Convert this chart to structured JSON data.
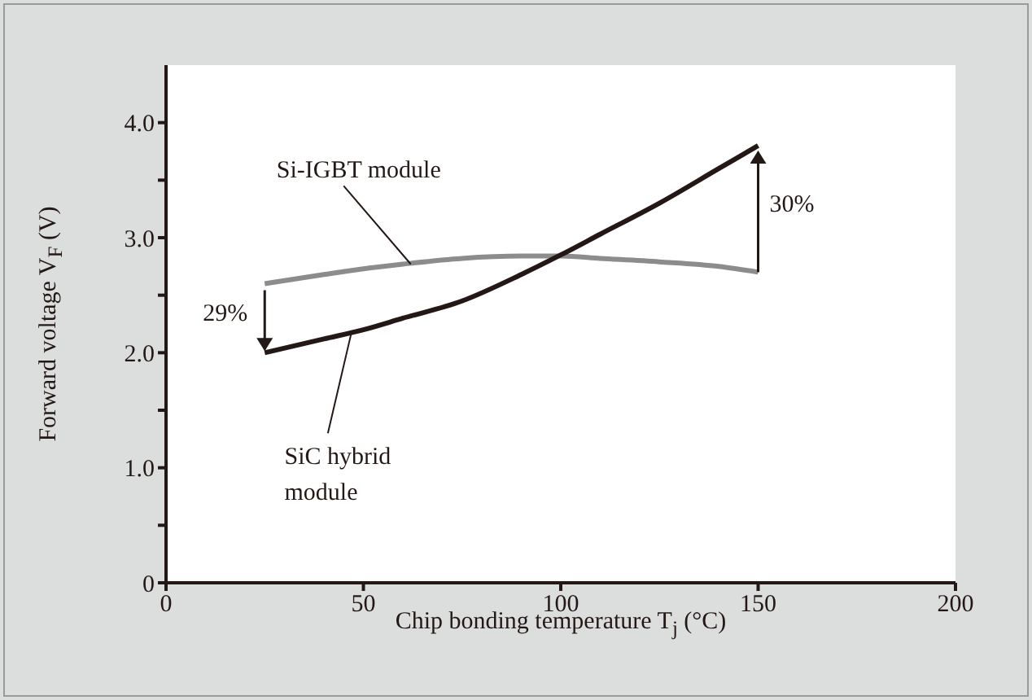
{
  "chart_data": {
    "type": "line",
    "xlabel": "Chip bonding temperature T$_{j}$ (°C)",
    "ylabel": "Forward voltage V$_{F}$ (V)",
    "x": [
      25,
      40,
      50,
      60,
      75,
      90,
      100,
      110,
      125,
      140,
      150
    ],
    "series": [
      {
        "name": "Si-IGBT module",
        "color": "#8c8c8c",
        "values": [
          2.6,
          2.68,
          2.73,
          2.77,
          2.82,
          2.84,
          2.84,
          2.82,
          2.79,
          2.75,
          2.7
        ]
      },
      {
        "name": "SiC hybrid module",
        "color": "#231815",
        "values": [
          2.0,
          2.12,
          2.2,
          2.3,
          2.45,
          2.68,
          2.85,
          3.03,
          3.3,
          3.6,
          3.8
        ]
      }
    ],
    "xlim": [
      0,
      200
    ],
    "xticks": [
      0,
      50,
      100,
      150,
      200
    ],
    "ylim": [
      0,
      4.5
    ],
    "yticks": [
      0,
      {
        "value": 0.5,
        "label": null
      },
      {
        "value": 1,
        "label": "1.0"
      },
      {
        "value": 1.5,
        "label": null
      },
      {
        "value": 2,
        "label": "2.0"
      },
      {
        "value": 2.5,
        "label": null
      },
      {
        "value": 3,
        "label": "3.0"
      },
      {
        "value": 3.5,
        "label": null
      },
      {
        "value": 4,
        "label": "4.0"
      }
    ],
    "annotations": [
      "29%",
      "30%"
    ],
    "grid": false,
    "legend": false,
    "marker": "none",
    "line_style": "solid"
  }
}
